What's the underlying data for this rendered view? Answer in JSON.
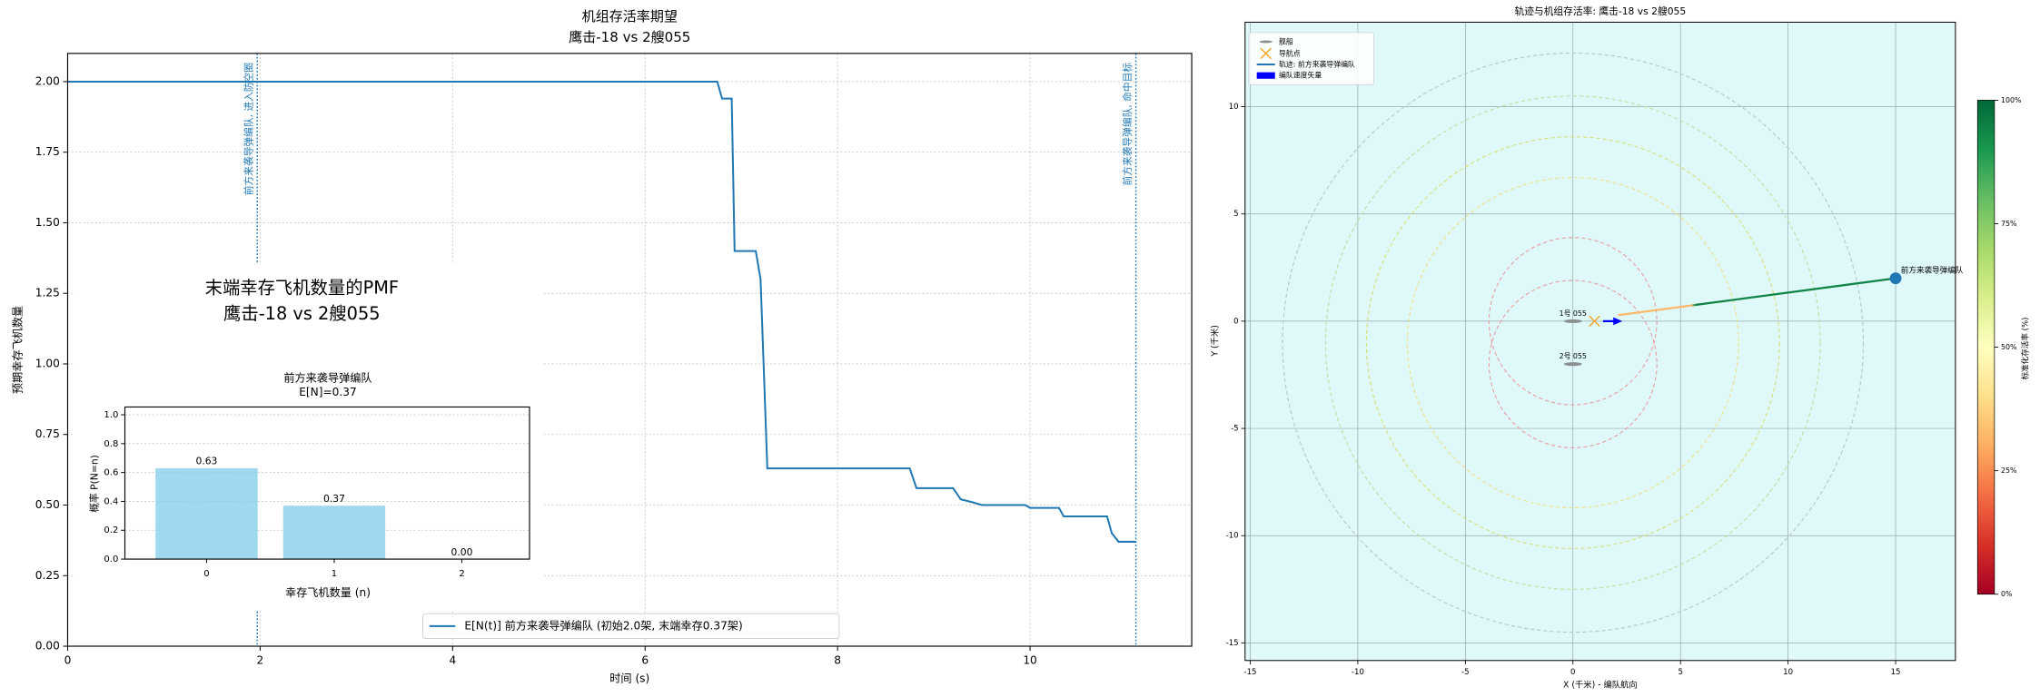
{
  "chart_data": [
    {
      "type": "line",
      "title": "机组存活率期望",
      "subtitle": "鹰击-18 vs 2艘055",
      "xlabel": "时间 (s)",
      "ylabel": "预期幸存飞机数量",
      "xlim": [
        0,
        11.68
      ],
      "ylim": [
        0,
        2.1
      ],
      "xticks": [
        0,
        2,
        4,
        6,
        8,
        10
      ],
      "yticks": [
        {
          "value": 0,
          "label": "0.00"
        },
        {
          "value": 0.25,
          "label": "0.25"
        },
        {
          "value": 0.5,
          "label": "0.50"
        },
        {
          "value": 0.75,
          "label": "0.75"
        },
        {
          "value": 1,
          "label": "1.00"
        },
        {
          "value": 1.25,
          "label": "1.25"
        },
        {
          "value": 1.5,
          "label": "1.50"
        },
        {
          "value": 1.75,
          "label": "1.75"
        },
        {
          "value": 2,
          "label": "2.00"
        }
      ],
      "grid": true,
      "legend": "lower center",
      "x": [
        0,
        6.75,
        6.8,
        6.9,
        6.93,
        7.15,
        7.2,
        7.27,
        8.75,
        8.82,
        9.2,
        9.28,
        9.4,
        9.5,
        9.95,
        10.0,
        10.3,
        10.35,
        10.8,
        10.85,
        10.92,
        11.1
      ],
      "series": [
        {
          "name": "E[N(t)] 前方来袭导弹编队 (初始2.0架, 末端幸存0.37架)",
          "color": "#1f77b4",
          "values": [
            2.0,
            2.0,
            1.94,
            1.94,
            1.4,
            1.4,
            1.3,
            0.63,
            0.63,
            0.56,
            0.56,
            0.52,
            0.51,
            0.5,
            0.5,
            0.49,
            0.49,
            0.46,
            0.46,
            0.4,
            0.37,
            0.37
          ]
        }
      ],
      "events": [
        {
          "x": 1.97,
          "label": "前方来袭导弹编队, 进入防空圈"
        },
        {
          "x": 11.1,
          "label": "前方来袭导弹编队, 命中目标"
        }
      ]
    },
    {
      "type": "bar",
      "title": "末端幸存飞机数量的PMF",
      "subtitle": "鹰击-18 vs 2艘055",
      "axes_title": "前方来袭导弹编队",
      "axes_subtitle": "E[N]=0.37",
      "xlabel": "幸存飞机数量 (n)",
      "ylabel": "概率 P(N=n)",
      "categories": [
        "0",
        "1",
        "2"
      ],
      "values": [
        0.63,
        0.37,
        0.0
      ],
      "value_labels": [
        "0.63",
        "0.37",
        "0.00"
      ],
      "color": "#87ceeb",
      "ylim": [
        0,
        1.054
      ],
      "yticks": [
        {
          "value": 0,
          "label": "0.0"
        },
        {
          "value": 0.2,
          "label": "0.2"
        },
        {
          "value": 0.4,
          "label": "0.4"
        },
        {
          "value": 0.6,
          "label": "0.6"
        },
        {
          "value": 0.8,
          "label": "0.8"
        },
        {
          "value": 1,
          "label": "1.0"
        }
      ],
      "grid": true
    },
    {
      "type": "trajectory",
      "title": "轨迹与机组存活率: 鹰击-18 vs 2艘055",
      "xlabel": "X (千米) - 编队航向",
      "ylabel": "Y (千米)",
      "xlim": [
        -15.24,
        17.78
      ],
      "ylim": [
        -15.82,
        13.94
      ],
      "xticks": [
        -15,
        -10,
        -5,
        0,
        5,
        10,
        15
      ],
      "yticks": [
        -15,
        -10,
        -5,
        0,
        5,
        10
      ],
      "grid": true,
      "background": "#dff9fb",
      "legend": "upper left",
      "legend_entries": [
        "舰船",
        "导航点",
        "轨迹: 前方来袭导弹编队",
        "编队速度矢量"
      ],
      "rings": [
        {
          "x": 0,
          "y": -1,
          "r": 13.5,
          "color": "#b8c8c8"
        },
        {
          "x": 0,
          "y": -1,
          "r": 11.5,
          "color": "#bfe0a0"
        },
        {
          "x": 0,
          "y": -1,
          "r": 9.6,
          "color": "#d8e07a"
        },
        {
          "x": 0,
          "y": -1,
          "r": 7.7,
          "color": "#f0e08a"
        },
        {
          "x": 0,
          "y": 0,
          "r": 3.9,
          "color": "#e8a0a0"
        },
        {
          "x": 0,
          "y": -2,
          "r": 3.9,
          "color": "#e8a0a0"
        }
      ],
      "ships": [
        {
          "label": "1号 055",
          "x": 0,
          "y": 0
        },
        {
          "label": "2号 055",
          "x": 0,
          "y": -2
        }
      ],
      "waypoint": {
        "x": 1,
        "y": 0,
        "color": "#f5a623"
      },
      "trajectory": {
        "name": "前方来袭导弹编队",
        "x": [
          15,
          5.7,
          5.5,
          2.1
        ],
        "y": [
          2.0,
          0.76,
          0.73,
          0.28
        ],
        "survival": [
          94,
          94,
          32,
          32
        ],
        "marker_color": "#1f77b4"
      },
      "velocity": {
        "x": 1.4,
        "y": 0,
        "dx": 0.9,
        "dy": 0,
        "color": "#0000ff"
      },
      "colorbar": {
        "label": "标准化存活率 (%)",
        "lim": [
          0,
          100
        ],
        "ticks": [
          {
            "value": 0,
            "label": "0%"
          },
          {
            "value": 25,
            "label": "25%"
          },
          {
            "value": 50,
            "label": "50%"
          },
          {
            "value": 75,
            "label": "75%"
          },
          {
            "value": 100,
            "label": "100%"
          }
        ],
        "colors": [
          "#a50026",
          "#d73027",
          "#f46d43",
          "#fdae61",
          "#fee08b",
          "#ffffbf",
          "#d9ef8b",
          "#a6d96a",
          "#66bd63",
          "#1a9850",
          "#006837"
        ]
      }
    }
  ]
}
